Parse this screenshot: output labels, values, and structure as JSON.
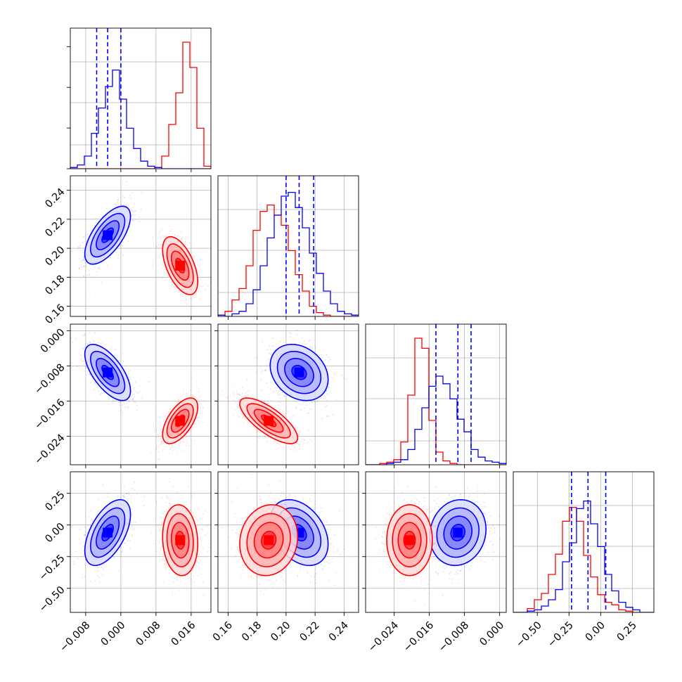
{
  "chart_data": {
    "type": "corner",
    "parameters": [
      {
        "lim": [
          -0.0115,
          0.0205
        ],
        "ticks": [
          -0.008,
          0.0,
          0.008,
          0.016
        ],
        "tick_labels": [
          "−0.008",
          "0.000",
          "0.008",
          "0.016"
        ]
      },
      {
        "lim": [
          0.153,
          0.25
        ],
        "ticks": [
          0.16,
          0.18,
          0.2,
          0.22,
          0.24
        ],
        "tick_labels": [
          "0.16",
          "0.18",
          "0.20",
          "0.22",
          "0.24"
        ]
      },
      {
        "lim": [
          -0.0305,
          0.0015
        ],
        "ticks": [
          -0.024,
          -0.016,
          -0.008,
          0.0
        ],
        "tick_labels": [
          "−0.024",
          "−0.016",
          "−0.008",
          "0.000"
        ]
      },
      {
        "lim": [
          -0.69,
          0.42
        ],
        "ticks": [
          -0.5,
          -0.25,
          0.0,
          0.25
        ],
        "tick_labels": [
          "−0.50",
          "−0.25",
          "0.00",
          "0.25"
        ]
      }
    ],
    "grid": true,
    "series": [
      {
        "color": "#0000ff",
        "means": [
          -0.003,
          0.209,
          -0.0095,
          -0.06
        ],
        "sds": [
          0.0026,
          0.01,
          0.0032,
          0.13
        ],
        "rho": [
          [
            1,
            0.65,
            -0.65,
            0.55
          ],
          [
            0.65,
            1,
            -0.25,
            -0.35
          ],
          [
            -0.65,
            -0.25,
            1,
            0.1
          ],
          [
            0.55,
            -0.35,
            0.1,
            1
          ]
        ],
        "quantiles": [
          [
            -0.0055,
            -0.003,
            0.0
          ],
          [
            0.2,
            0.209,
            0.219
          ],
          [
            -0.0145,
            -0.0095,
            -0.0065
          ],
          [
            -0.23,
            -0.1,
            0.04
          ]
        ],
        "hist": [
          [
            0.01,
            0.03,
            0.1,
            0.28,
            0.48,
            0.65,
            0.78,
            0.55,
            0.32,
            0.16,
            0.06,
            0.02,
            0.01,
            0.0,
            0.0,
            0.0,
            0.0,
            0.0,
            0.0,
            0.0
          ],
          [
            0.01,
            0.0,
            0.02,
            0.04,
            0.1,
            0.21,
            0.4,
            0.62,
            0.8,
            0.95,
            0.98,
            0.86,
            0.7,
            0.5,
            0.34,
            0.2,
            0.1,
            0.04,
            0.02,
            0.01
          ],
          [
            0.0,
            0.0,
            0.0,
            0.01,
            0.02,
            0.04,
            0.12,
            0.28,
            0.45,
            0.62,
            0.7,
            0.64,
            0.52,
            0.36,
            0.26,
            0.12,
            0.06,
            0.03,
            0.02,
            0.01
          ],
          [
            0.0,
            0.0,
            0.01,
            0.02,
            0.05,
            0.1,
            0.18,
            0.4,
            0.55,
            0.82,
            0.88,
            0.7,
            0.52,
            0.3,
            0.17,
            0.08,
            0.04,
            0.02,
            0.0,
            0.0
          ]
        ]
      },
      {
        "color": "#ff0000",
        "means": [
          0.0135,
          0.188,
          -0.0205,
          -0.12
        ],
        "sds": [
          0.002,
          0.01,
          0.0026,
          0.14
        ],
        "rho": [
          [
            1,
            -0.55,
            0.6,
            -0.1
          ],
          [
            -0.55,
            1,
            -0.75,
            0.1
          ],
          [
            0.6,
            -0.75,
            1,
            0.0
          ],
          [
            -0.1,
            0.1,
            0.0,
            1
          ]
        ],
        "hist": [
          [
            0.0,
            0.0,
            0.0,
            0.0,
            0.0,
            0.0,
            0.0,
            0.0,
            0.0,
            0.0,
            0.0,
            0.0,
            0.01,
            0.1,
            0.35,
            0.6,
            1.0,
            0.8,
            0.32,
            0.02
          ],
          [
            0.01,
            0.04,
            0.13,
            0.22,
            0.4,
            0.68,
            0.83,
            0.88,
            0.8,
            0.72,
            0.52,
            0.33,
            0.2,
            0.08,
            0.03,
            0.01,
            0.0,
            0.0,
            0.0,
            0.0
          ],
          [
            0.0,
            0.0,
            0.01,
            0.02,
            0.04,
            0.18,
            0.55,
            1.0,
            0.92,
            0.35,
            0.1,
            0.03,
            0.01,
            0.0,
            0.0,
            0.0,
            0.0,
            0.0,
            0.0,
            0.0
          ],
          [
            0.0,
            0.0,
            0.03,
            0.1,
            0.15,
            0.3,
            0.46,
            0.72,
            0.83,
            0.72,
            0.45,
            0.28,
            0.14,
            0.08,
            0.06,
            0.02,
            0.01,
            0.0,
            0.0,
            0.0
          ]
        ]
      }
    ]
  }
}
